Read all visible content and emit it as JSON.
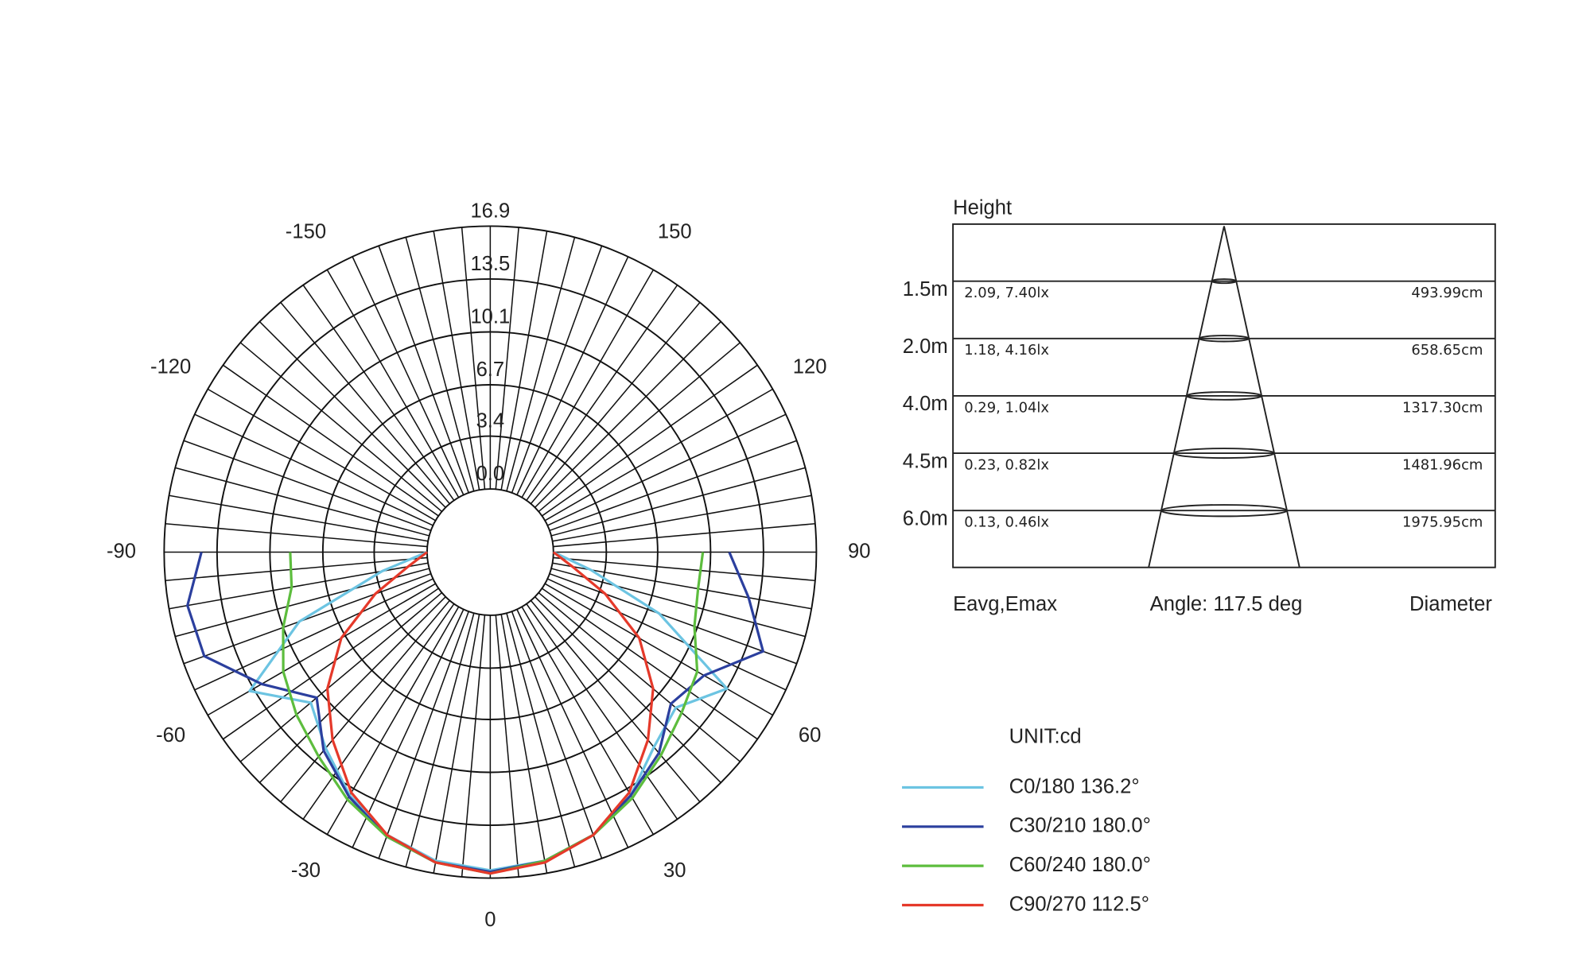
{
  "chart_data": {
    "type": "polar",
    "unit": "UNIT:cd",
    "x": [
      -90,
      -80,
      -70,
      -60,
      -50,
      -40,
      -30,
      -20,
      -10,
      0,
      10,
      20,
      30,
      40,
      50,
      60,
      70,
      80,
      90
    ],
    "series": [
      {
        "name": "C0/180 136.2°",
        "color": "#6cc4e2",
        "values": [
          0,
          3.0,
          9.0,
          13.8,
          11.0,
          12.4,
          14.0,
          15.3,
          16.1,
          16.4,
          16.1,
          15.3,
          14.0,
          12.3,
          11.5,
          13.5,
          7.5,
          2.5,
          0
        ]
      },
      {
        "name": "C30/210 180.0°",
        "color": "#2b3f9e",
        "values": [
          14.5,
          15.7,
          15.5,
          12.9,
          10.5,
          12.6,
          14.1,
          15.4,
          16.2,
          16.5,
          16.1,
          15.3,
          14.0,
          12.8,
          11.1,
          11.8,
          14.6,
          12.8,
          11.3
        ]
      },
      {
        "name": "C60/240 180.0°",
        "color": "#5dbd3e",
        "values": [
          8.8,
          8.9,
          10.1,
          11.3,
          12.2,
          13.1,
          14.3,
          15.4,
          16.2,
          16.6,
          16.1,
          15.3,
          14.2,
          13.0,
          12.0,
          11.3,
          9.9,
          9.5,
          9.6
        ]
      },
      {
        "name": "C90/270 112.5°",
        "color": "#e5392a",
        "values": [
          0,
          1.3,
          3.8,
          7.0,
          9.6,
          11.7,
          13.8,
          15.3,
          16.2,
          16.6,
          16.2,
          15.3,
          13.8,
          11.7,
          9.6,
          7.0,
          3.8,
          1.3,
          0
        ]
      }
    ],
    "rlim": [
      0,
      16.9
    ],
    "rticks": [
      {
        "value": 0,
        "label": "0.0"
      },
      3.4,
      6.7,
      10.1,
      13.5,
      16.9
    ],
    "xticks": [
      -150,
      -120,
      -90,
      -60,
      -30,
      0,
      30,
      60,
      90,
      120,
      150
    ],
    "grid": true
  },
  "illuminance": {
    "header": "Height",
    "rows": [
      {
        "height": "1.5m",
        "eavg_emax": "2.09,  7.40lx",
        "diameter": "493.99cm"
      },
      {
        "height": "2.0m",
        "eavg_emax": "1.18,  4.16lx",
        "diameter": "658.65cm"
      },
      {
        "height": "4.0m",
        "eavg_emax": "0.29,  1.04lx",
        "diameter": "1317.30cm"
      },
      {
        "height": "4.5m",
        "eavg_emax": "0.23,  0.82lx",
        "diameter": "1481.96cm"
      },
      {
        "height": "6.0m",
        "eavg_emax": "0.13,  0.46lx",
        "diameter": "1975.95cm"
      }
    ],
    "footer": [
      "Eavg,Emax",
      "Angle: 117.5 deg",
      "Diameter"
    ]
  }
}
